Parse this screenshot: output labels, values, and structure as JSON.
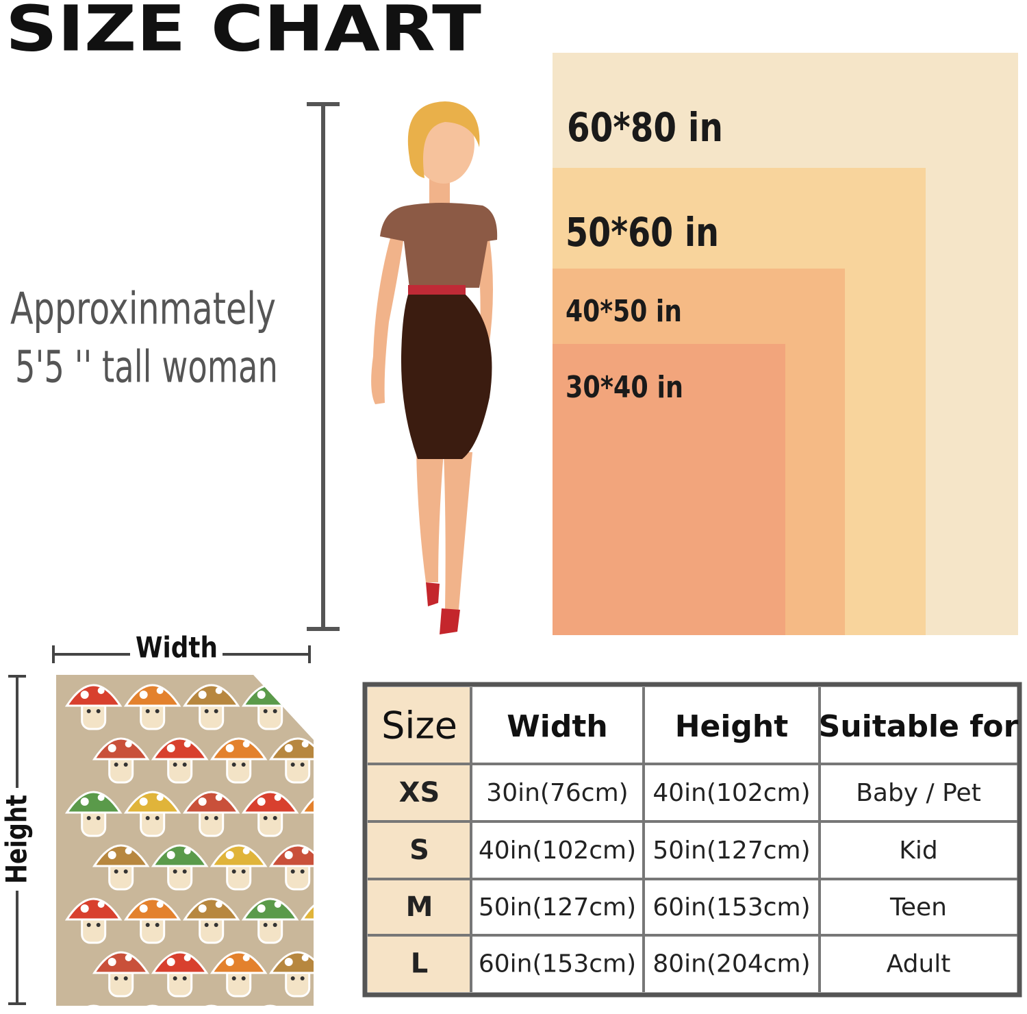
{
  "title": "SIZE CHART",
  "woman_note": [
    "Approxinmately",
    "5'5 '' tall woman"
  ],
  "size_labels": [
    "60*80 in",
    "50*60 in",
    "40*50 in",
    "30*40 in"
  ],
  "blanket": {
    "width_label": "Width",
    "height_label": "Height"
  },
  "table": {
    "header": [
      "Size",
      "Width",
      "Height",
      "Suitable for"
    ],
    "rows": [
      [
        "XS",
        "30in(76cm)",
        "40in(102cm)",
        "Baby / Pet"
      ],
      [
        "S",
        "40in(102cm)",
        "50in(127cm)",
        "Kid"
      ],
      [
        "M",
        "50in(127cm)",
        "60in(153cm)",
        "Teen"
      ],
      [
        "L",
        "60in(153cm)",
        "80in(204cm)",
        "Adult"
      ]
    ]
  }
}
